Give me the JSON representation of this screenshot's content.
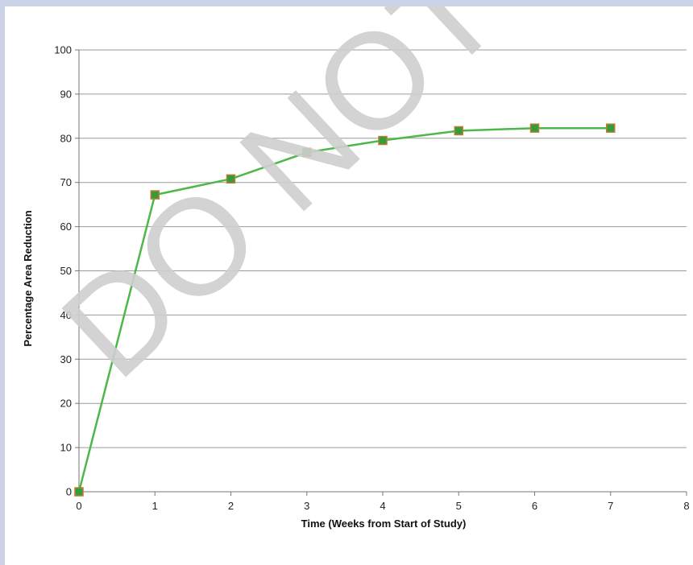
{
  "chart_data": {
    "type": "line",
    "title": "",
    "xlabel": "Time (Weeks from Start of Study)",
    "ylabel": "Percentage Area Reduction",
    "xlim": [
      0,
      8
    ],
    "ylim": [
      0,
      100
    ],
    "x_ticks": [
      0,
      1,
      2,
      3,
      4,
      5,
      6,
      7,
      8
    ],
    "y_ticks": [
      0,
      10,
      20,
      30,
      40,
      50,
      60,
      70,
      80,
      90,
      100
    ],
    "grid": "horizontal",
    "legend": "none",
    "series": [
      {
        "x": [
          0,
          1,
          2,
          3,
          4,
          5,
          6,
          7
        ],
        "y": [
          0,
          67.2,
          70.8,
          76.8,
          79.5,
          81.7,
          82.3,
          82.3
        ],
        "line_color": "#4db847",
        "marker_fill": "#2e9e3e",
        "marker_edge": "#c47a2c"
      }
    ]
  },
  "watermark": {
    "text": "DO NOT COPY",
    "color": "#cfcfcf"
  }
}
